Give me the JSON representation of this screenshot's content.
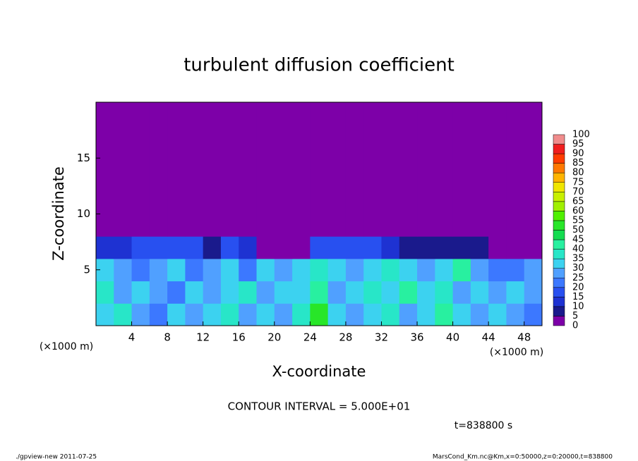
{
  "chart_data": {
    "type": "heatmap",
    "title": "turbulent diffusion coefficient",
    "x_label": "X-coordinate",
    "y_label": "Z-coordinate",
    "x_unit": "(×1000 m)",
    "y_unit": "(×1000 m)",
    "annotation": "CONTOUR INTERVAL = 5.000E+01",
    "time_label": "t=838800 s",
    "footer_left": "./gpview-new  2011-07-25",
    "footer_right": "MarsCond_Km.nc@Km,x=0:50000,z=0:20000,t=838800",
    "xlim": [
      0,
      50
    ],
    "ylim": [
      0,
      20
    ],
    "xticks": [
      4,
      8,
      12,
      16,
      20,
      24,
      28,
      32,
      36,
      40,
      44,
      48
    ],
    "yticks": [
      5,
      10,
      15
    ],
    "x": [
      1,
      3,
      5,
      7,
      9,
      11,
      13,
      15,
      17,
      19,
      21,
      23,
      25,
      27,
      29,
      31,
      33,
      35,
      37,
      39,
      41,
      43,
      45,
      47,
      49
    ],
    "y": [
      1,
      3,
      5,
      7,
      9,
      11,
      13,
      15,
      17,
      19
    ],
    "values": [
      [
        30,
        35,
        25,
        20,
        30,
        25,
        30,
        35,
        25,
        30,
        25,
        35,
        50,
        30,
        25,
        30,
        35,
        25,
        30,
        40,
        30,
        25,
        30,
        25,
        20
      ],
      [
        35,
        25,
        30,
        25,
        20,
        30,
        25,
        30,
        35,
        25,
        30,
        30,
        40,
        25,
        30,
        35,
        30,
        40,
        30,
        35,
        25,
        30,
        25,
        30,
        25
      ],
      [
        30,
        25,
        20,
        25,
        30,
        20,
        25,
        30,
        20,
        30,
        25,
        30,
        35,
        30,
        25,
        30,
        35,
        30,
        25,
        30,
        40,
        25,
        20,
        20,
        25
      ],
      [
        10,
        10,
        15,
        15,
        15,
        15,
        5,
        15,
        10,
        0,
        0,
        0,
        15,
        15,
        15,
        15,
        10,
        5,
        5,
        5,
        5,
        5,
        0,
        0,
        0
      ],
      [
        0,
        0,
        0,
        0,
        0,
        0,
        0,
        0,
        0,
        0,
        0,
        0,
        0,
        0,
        0,
        0,
        0,
        0,
        0,
        0,
        0,
        0,
        0,
        0,
        0
      ],
      [
        0,
        0,
        0,
        0,
        0,
        0,
        0,
        0,
        0,
        0,
        0,
        0,
        0,
        0,
        0,
        0,
        0,
        0,
        0,
        0,
        0,
        0,
        0,
        0,
        0
      ],
      [
        0,
        0,
        0,
        0,
        0,
        0,
        0,
        0,
        0,
        0,
        0,
        0,
        0,
        0,
        0,
        0,
        0,
        0,
        0,
        0,
        0,
        0,
        0,
        0,
        0
      ],
      [
        0,
        0,
        0,
        0,
        0,
        0,
        0,
        0,
        0,
        0,
        0,
        0,
        0,
        0,
        0,
        0,
        0,
        0,
        0,
        0,
        0,
        0,
        0,
        0,
        0
      ],
      [
        0,
        0,
        0,
        0,
        0,
        0,
        0,
        0,
        0,
        0,
        0,
        0,
        0,
        0,
        0,
        0,
        0,
        0,
        0,
        0,
        0,
        0,
        0,
        0,
        0
      ],
      [
        0,
        0,
        0,
        0,
        0,
        0,
        0,
        0,
        0,
        0,
        0,
        0,
        0,
        0,
        0,
        0,
        0,
        0,
        0,
        0,
        0,
        0,
        0,
        0,
        0
      ]
    ],
    "cticks": [
      0,
      5,
      10,
      15,
      20,
      25,
      30,
      35,
      40,
      45,
      50,
      55,
      60,
      65,
      70,
      75,
      80,
      85,
      90,
      95,
      100
    ],
    "colors": [
      "#7d00a8",
      "#1a1a8c",
      "#1e32d2",
      "#2850f0",
      "#3c78ff",
      "#50a0ff",
      "#3cd2f0",
      "#28e6c8",
      "#28f0a0",
      "#14dc50",
      "#28e628",
      "#50f000",
      "#a0f000",
      "#c8f000",
      "#f0e600",
      "#ffb400",
      "#ff7800",
      "#ff3c00",
      "#f01e1e",
      "#f08c8c"
    ]
  }
}
